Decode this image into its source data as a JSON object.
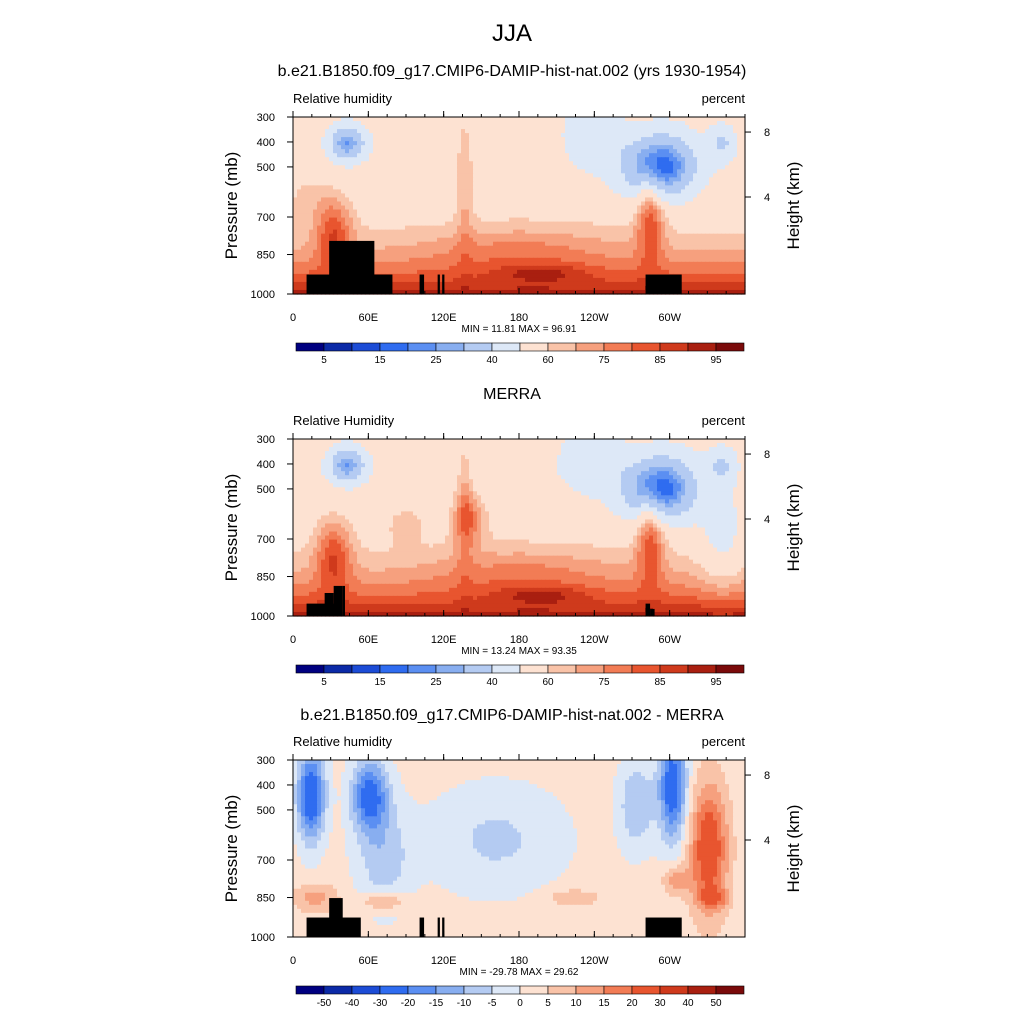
{
  "figure": {
    "title": "JJA"
  },
  "chart_data": [
    {
      "type": "heatmap",
      "title": "b.e21.B1850.f09_g17.CMIP6-DAMIP-hist-nat.002 (yrs 1930-1954)",
      "left_label": "Relative humidity",
      "right_label": "percent",
      "ylabel": "Pressure (mb)",
      "y2label": "Height (km)",
      "x_ticks": [
        "0",
        "60E",
        "120E",
        "180",
        "120W",
        "60W"
      ],
      "y_ticks": [
        "300",
        "400",
        "500",
        "700",
        "850",
        "1000"
      ],
      "y2_ticks": [
        "8",
        "4"
      ],
      "stats": "MIN =  11.81  MAX =  96.91",
      "colorbar_labels": [
        "5",
        "15",
        "25",
        "40",
        "60",
        "75",
        "85",
        "95"
      ],
      "colorbar_levels": [
        5,
        10,
        15,
        20,
        25,
        30,
        40,
        50,
        60,
        65,
        70,
        75,
        80,
        85,
        90,
        95
      ],
      "min": 11.81,
      "max": 96.91
    },
    {
      "type": "heatmap",
      "title": "MERRA",
      "left_label": "Relative Humidity",
      "right_label": "percent",
      "ylabel": "Pressure (mb)",
      "y2label": "Height (km)",
      "x_ticks": [
        "0",
        "60E",
        "120E",
        "180",
        "120W",
        "60W"
      ],
      "y_ticks": [
        "300",
        "400",
        "500",
        "700",
        "850",
        "1000"
      ],
      "y2_ticks": [
        "8",
        "4"
      ],
      "stats": "MIN =  13.24  MAX =  93.35",
      "colorbar_labels": [
        "5",
        "15",
        "25",
        "40",
        "60",
        "75",
        "85",
        "95"
      ],
      "colorbar_levels": [
        5,
        10,
        15,
        20,
        25,
        30,
        40,
        50,
        60,
        65,
        70,
        75,
        80,
        85,
        90,
        95
      ],
      "min": 13.24,
      "max": 93.35
    },
    {
      "type": "heatmap",
      "title": "b.e21.B1850.f09_g17.CMIP6-DAMIP-hist-nat.002 - MERRA",
      "left_label": "Relative humidity",
      "right_label": "percent",
      "ylabel": "Pressure (mb)",
      "y2label": "Height (km)",
      "x_ticks": [
        "0",
        "60E",
        "120E",
        "180",
        "120W",
        "60W"
      ],
      "y_ticks": [
        "300",
        "400",
        "500",
        "700",
        "850",
        "1000"
      ],
      "y2_ticks": [
        "8",
        "4"
      ],
      "stats": "MIN = -29.78  MAX =  29.62",
      "colorbar_labels": [
        "-50",
        "-40",
        "-30",
        "-20",
        "-15",
        "-10",
        "-5",
        "0",
        "5",
        "10",
        "15",
        "20",
        "30",
        "40",
        "50"
      ],
      "colorbar_levels": [
        -50,
        -40,
        -30,
        -20,
        -15,
        -10,
        -5,
        0,
        5,
        10,
        15,
        20,
        30,
        40,
        50
      ],
      "min": -29.78,
      "max": 29.62
    }
  ],
  "colors": {
    "colormap": [
      "#000080",
      "#0b2aa7",
      "#1c4cd6",
      "#2f6cf0",
      "#5b8ff2",
      "#88aef0",
      "#b4cbf2",
      "#dde8f7",
      "#fde2d2",
      "#f9c3a8",
      "#f6a07e",
      "#f27c55",
      "#e8552f",
      "#cf3a1c",
      "#a91f10",
      "#7a0a0a"
    ],
    "topography": "#000000"
  }
}
